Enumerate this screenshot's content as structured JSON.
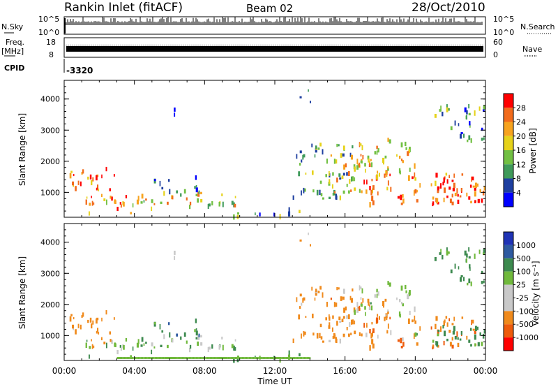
{
  "header": {
    "station": "Rankin Inlet (fitACF)",
    "beam": "Beam 02",
    "date": "28/Oct/2010"
  },
  "params_panel": {
    "nsky_label": "N.Sky",
    "nsky_ticks": [
      "10^5",
      "10^0"
    ],
    "nsearch_label": "N.Search",
    "nsearch_ticks": [
      "10^5",
      "10^0"
    ],
    "freq_label": "Freq.",
    "freq_unit": "[MHz]",
    "freq_ticks": [
      "18",
      "8"
    ],
    "nave_label": "Nave",
    "nave_ticks": [
      "60",
      "0"
    ],
    "cpid_label": "CPID",
    "cpid_value": "-3320"
  },
  "colors": {
    "power_scale": [
      "#0000ff",
      "#1e3fa0",
      "#3f9a5a",
      "#72c043",
      "#e6d21a",
      "#f7a31e",
      "#f26b1c",
      "#ff0000"
    ],
    "velocity_scale": [
      "#ff0000",
      "#ee5b0c",
      "#f08a1c",
      "#c9c9c9",
      "#c9c9c9",
      "#70b93c",
      "#3d8a4f",
      "#2e5aa0",
      "#1f33b5"
    ]
  },
  "chart_data": [
    {
      "type": "heatmap",
      "name": "power",
      "ylabel": "Slant Range [km]",
      "yticks": [
        1000,
        2000,
        3000,
        4000
      ],
      "ylim": [
        200,
        4600
      ],
      "xlim": [
        0,
        24
      ],
      "colorbar_label": "Power [dB]",
      "colorbar_ticks": [
        4,
        8,
        12,
        16,
        20,
        24,
        28
      ],
      "colorbar_range": [
        0,
        32
      ]
    },
    {
      "type": "heatmap",
      "name": "velocity",
      "ylabel": "Slant Range [km]",
      "yticks": [
        1000,
        2000,
        3000,
        4000
      ],
      "ylim": [
        200,
        4600
      ],
      "xlim": [
        0,
        24
      ],
      "xlabel": "Time UT",
      "xticks": [
        "00:00",
        "04:00",
        "08:00",
        "12:00",
        "16:00",
        "20:00",
        "00:00"
      ],
      "colorbar_label": "Velocity [m s⁻¹]",
      "colorbar_ticks": [
        "1000",
        "500",
        "100",
        "25",
        "-25",
        "-100",
        "-500",
        "-1000"
      ]
    }
  ],
  "blobs": [
    {
      "h0": 0.2,
      "h1": 3.0,
      "r0": 600,
      "r1": 1800,
      "p": 27,
      "v": -200
    },
    {
      "h0": 1.0,
      "h1": 4.5,
      "r0": 300,
      "r1": 900,
      "p": 22,
      "v": 80
    },
    {
      "h0": 4.5,
      "h1": 10.0,
      "r0": 400,
      "r1": 1000,
      "p": 18,
      "v": 60
    },
    {
      "h0": 5.0,
      "h1": 8.0,
      "r0": 1000,
      "r1": 1500,
      "p": 6,
      "v": 400
    },
    {
      "h0": 9.0,
      "h1": 13.5,
      "r0": 200,
      "r1": 450,
      "p": 10,
      "v": 100
    },
    {
      "h0": 13.0,
      "h1": 16.5,
      "r0": 800,
      "r1": 2600,
      "p": 12,
      "v": -150
    },
    {
      "h0": 15.0,
      "h1": 18.5,
      "r0": 1000,
      "r1": 2200,
      "p": 20,
      "v": -300
    },
    {
      "h0": 16.5,
      "h1": 20.0,
      "r0": 1600,
      "r1": 2700,
      "p": 20,
      "v": 20
    },
    {
      "h0": 17.0,
      "h1": 23.5,
      "r0": 600,
      "r1": 1600,
      "p": 26,
      "v": -400
    },
    {
      "h0": 19.5,
      "h1": 24.0,
      "r0": 600,
      "r1": 1300,
      "p": 28,
      "v": 200
    },
    {
      "h0": 21.0,
      "h1": 24.0,
      "r0": 2600,
      "r1": 3800,
      "p": 10,
      "v": 150
    },
    {
      "h0": 6.0,
      "h1": 6.6,
      "r0": 3300,
      "r1": 3700,
      "p": 6,
      "v": 10
    },
    {
      "h0": 13.4,
      "h1": 14.0,
      "r0": 3800,
      "r1": 4400,
      "p": 8,
      "v": -100
    }
  ]
}
